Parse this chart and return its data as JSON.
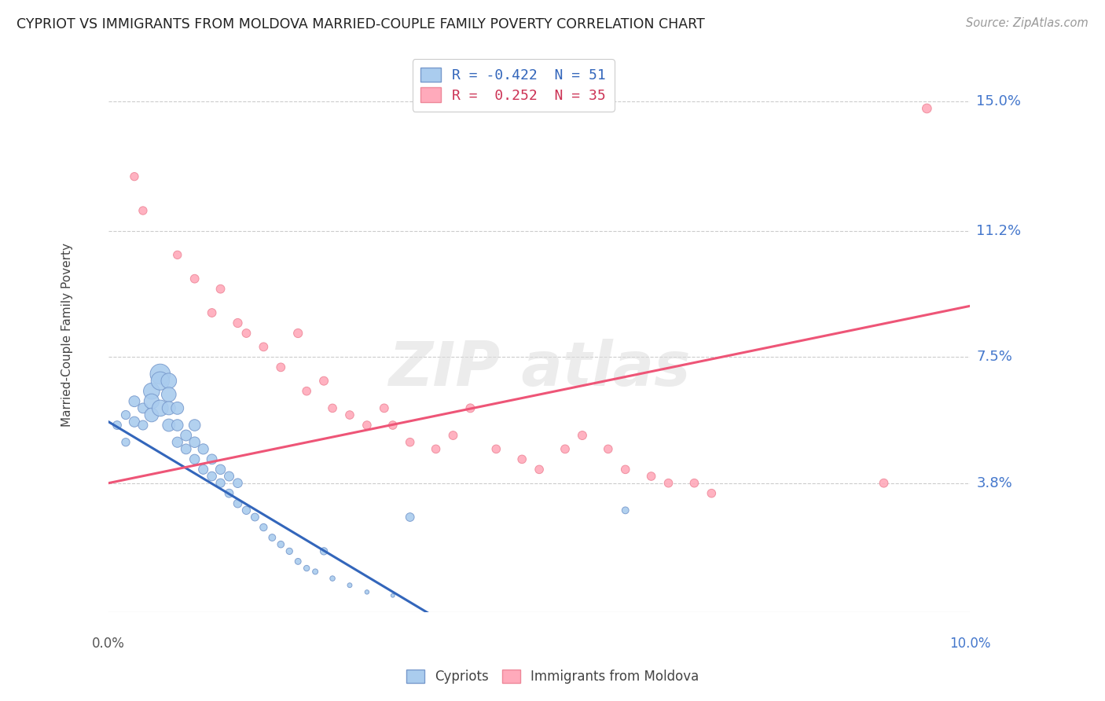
{
  "title": "CYPRIOT VS IMMIGRANTS FROM MOLDOVA MARRIED-COUPLE FAMILY POVERTY CORRELATION CHART",
  "source": "Source: ZipAtlas.com",
  "ylabel": "Married-Couple Family Poverty",
  "ytick_labels": [
    "3.8%",
    "7.5%",
    "11.2%",
    "15.0%"
  ],
  "ytick_values": [
    0.038,
    0.075,
    0.112,
    0.15
  ],
  "xmin": 0.0,
  "xmax": 0.1,
  "ymin": 0.0,
  "ymax": 0.163,
  "legend1_label": "R = -0.422  N = 51",
  "legend2_label": "R =  0.252  N = 35",
  "blue_fill": "#AACCEE",
  "blue_edge": "#7799CC",
  "pink_fill": "#FFAABB",
  "pink_edge": "#EE8899",
  "line_blue": "#3366BB",
  "line_pink": "#EE5577",
  "cypriot_x": [
    0.001,
    0.002,
    0.002,
    0.003,
    0.003,
    0.004,
    0.004,
    0.005,
    0.005,
    0.005,
    0.006,
    0.006,
    0.006,
    0.007,
    0.007,
    0.007,
    0.007,
    0.008,
    0.008,
    0.008,
    0.009,
    0.009,
    0.01,
    0.01,
    0.01,
    0.011,
    0.011,
    0.012,
    0.012,
    0.013,
    0.013,
    0.014,
    0.014,
    0.015,
    0.015,
    0.016,
    0.017,
    0.018,
    0.019,
    0.02,
    0.021,
    0.022,
    0.023,
    0.024,
    0.025,
    0.026,
    0.028,
    0.03,
    0.033,
    0.035,
    0.06
  ],
  "cypriot_y": [
    0.055,
    0.05,
    0.058,
    0.062,
    0.056,
    0.06,
    0.055,
    0.065,
    0.062,
    0.058,
    0.07,
    0.068,
    0.06,
    0.068,
    0.064,
    0.06,
    0.055,
    0.06,
    0.055,
    0.05,
    0.052,
    0.048,
    0.055,
    0.05,
    0.045,
    0.048,
    0.042,
    0.045,
    0.04,
    0.042,
    0.038,
    0.04,
    0.035,
    0.038,
    0.032,
    0.03,
    0.028,
    0.025,
    0.022,
    0.02,
    0.018,
    0.015,
    0.013,
    0.012,
    0.018,
    0.01,
    0.008,
    0.006,
    0.005,
    0.028,
    0.03
  ],
  "cypriot_size": [
    60,
    55,
    65,
    100,
    90,
    85,
    75,
    220,
    190,
    160,
    340,
    280,
    220,
    200,
    180,
    150,
    130,
    130,
    110,
    90,
    100,
    85,
    110,
    95,
    80,
    90,
    75,
    85,
    70,
    80,
    65,
    75,
    60,
    70,
    58,
    55,
    50,
    45,
    40,
    38,
    35,
    32,
    28,
    25,
    45,
    22,
    18,
    15,
    12,
    60,
    40
  ],
  "moldova_x": [
    0.003,
    0.004,
    0.008,
    0.01,
    0.012,
    0.013,
    0.015,
    0.016,
    0.018,
    0.02,
    0.022,
    0.023,
    0.025,
    0.026,
    0.028,
    0.03,
    0.032,
    0.033,
    0.035,
    0.038,
    0.04,
    0.042,
    0.045,
    0.048,
    0.05,
    0.053,
    0.055,
    0.058,
    0.06,
    0.063,
    0.065,
    0.068,
    0.07,
    0.09,
    0.095
  ],
  "moldova_y": [
    0.128,
    0.118,
    0.105,
    0.098,
    0.088,
    0.095,
    0.085,
    0.082,
    0.078,
    0.072,
    0.082,
    0.065,
    0.068,
    0.06,
    0.058,
    0.055,
    0.06,
    0.055,
    0.05,
    0.048,
    0.052,
    0.06,
    0.048,
    0.045,
    0.042,
    0.048,
    0.052,
    0.048,
    0.042,
    0.04,
    0.038,
    0.038,
    0.035,
    0.038,
    0.148
  ],
  "moldova_size": [
    55,
    55,
    55,
    60,
    60,
    60,
    65,
    60,
    60,
    60,
    65,
    58,
    62,
    58,
    58,
    58,
    60,
    58,
    58,
    58,
    60,
    62,
    58,
    58,
    58,
    60,
    62,
    58,
    58,
    58,
    58,
    58,
    58,
    60,
    70
  ],
  "blue_line_x0": 0.0,
  "blue_line_x1": 0.037,
  "blue_line_y0": 0.056,
  "blue_line_y1": 0.0,
  "pink_line_x0": 0.0,
  "pink_line_x1": 0.1,
  "pink_line_y0": 0.038,
  "pink_line_y1": 0.09
}
